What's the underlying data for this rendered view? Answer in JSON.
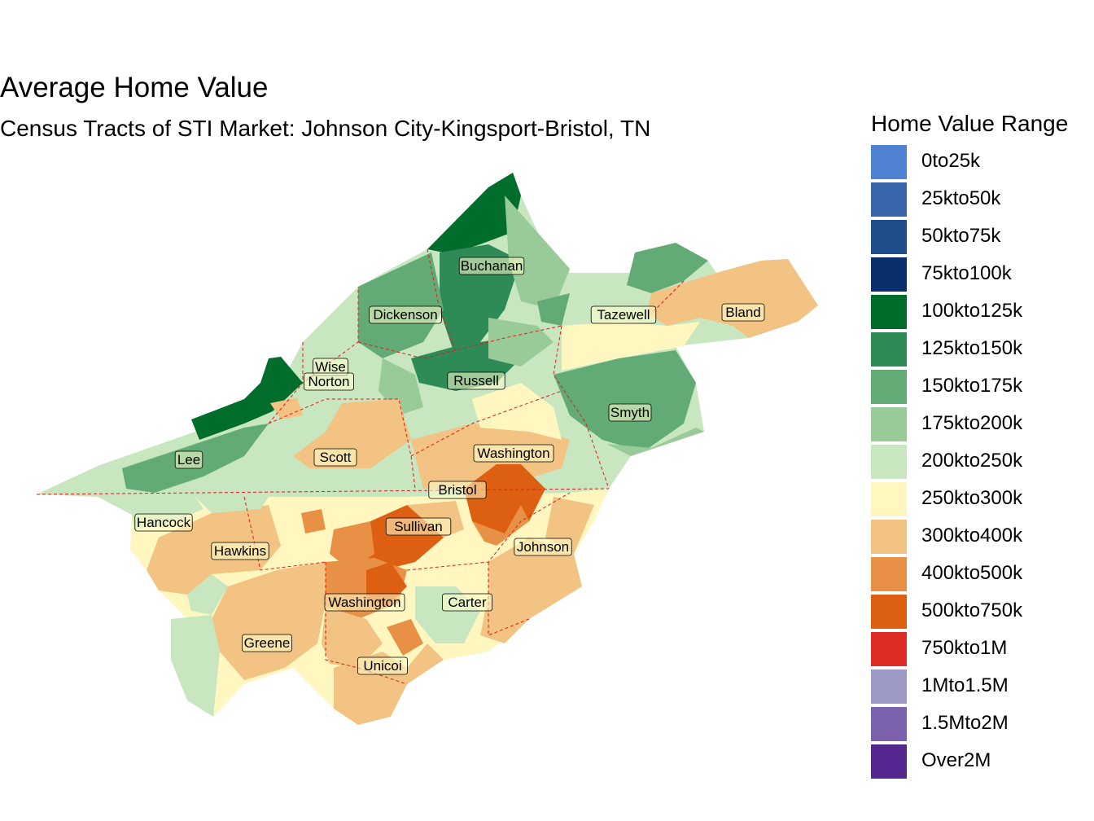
{
  "title": "Average Home Value",
  "subtitle": "Census Tracts of STI Market: Johnson City-Kingsport-Bristol, TN",
  "legend": {
    "title": "Home Value Range",
    "items": [
      {
        "label": "0to25k",
        "color": "#5082D2"
      },
      {
        "label": "25kto50k",
        "color": "#3966AA"
      },
      {
        "label": "50kto75k",
        "color": "#1F4D8C"
      },
      {
        "label": "75kto100k",
        "color": "#0A2E6B"
      },
      {
        "label": "100kto125k",
        "color": "#006D2C"
      },
      {
        "label": "125kto150k",
        "color": "#2E8B57"
      },
      {
        "label": "150kto175k",
        "color": "#62AB76"
      },
      {
        "label": "175kto200k",
        "color": "#98CB98"
      },
      {
        "label": "200kto250k",
        "color": "#C8E7C1"
      },
      {
        "label": "250kto300k",
        "color": "#FFF6C0"
      },
      {
        "label": "300kto400k",
        "color": "#F2C382"
      },
      {
        "label": "400kto500k",
        "color": "#E89146"
      },
      {
        "label": "500kto750k",
        "color": "#DD6012"
      },
      {
        "label": "750kto1M",
        "color": "#DE2D26"
      },
      {
        "label": "1Mto1.5M",
        "color": "#9E9AC8"
      },
      {
        "label": "1.5Mto2M",
        "color": "#7C61AC"
      },
      {
        "label": "Over2M",
        "color": "#54278F"
      }
    ]
  },
  "counties": [
    "Buchanan",
    "Dickenson",
    "Tazewell",
    "Bland",
    "Wise",
    "Norton",
    "Russell",
    "Smyth",
    "Lee",
    "Scott",
    "Washington",
    "Bristol",
    "Hancock",
    "Sullivan",
    "Hawkins",
    "Johnson",
    "Washington",
    "Carter",
    "Greene",
    "Unicoi"
  ],
  "colors": {
    "border": "#E31A1C",
    "label_fill": "#FFFFCC"
  }
}
